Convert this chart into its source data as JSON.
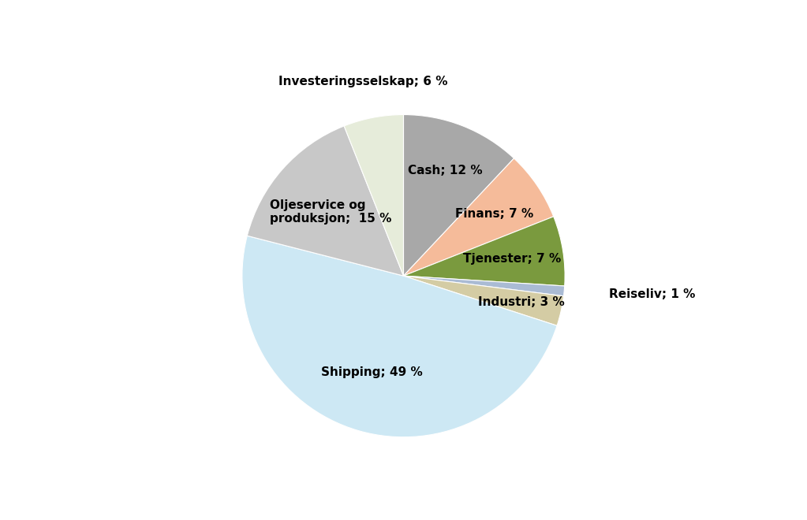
{
  "labels": [
    "Cash",
    "Finans",
    "Tjenester",
    "Reiseliv",
    "Industri",
    "Shipping",
    "Oljeservice og\nproduksjon",
    "Investeringsselskap"
  ],
  "label_display": [
    "Cash; 12 %",
    "Finans; 7 %",
    "Tjenester; 7 %",
    "Reiseliv; 1 %",
    "Industri; 3 %",
    "Shipping; 49 %",
    "Oljeservice og\nproduksjon;  15 %",
    "Investeringsselskap; 6 %"
  ],
  "pcts": [
    12,
    7,
    7,
    1,
    3,
    49,
    15,
    6
  ],
  "colors": [
    "#a8a8a8",
    "#f5bb9a",
    "#7a9a3e",
    "#aabbd4",
    "#d4cca4",
    "#cde8f4",
    "#c8c8c8",
    "#e6ecda"
  ],
  "startangle": 90,
  "bg": "#ffffff",
  "figsize": [
    10.23,
    6.6
  ],
  "dpi": 100,
  "label_positions": [
    {
      "r": 0.72,
      "ha": "center",
      "va": "center",
      "multiline": false
    },
    {
      "r": 0.72,
      "ha": "center",
      "va": "center",
      "multiline": false
    },
    {
      "r": 0.72,
      "ha": "center",
      "va": "center",
      "multiline": false
    },
    {
      "r": 1.18,
      "ha": "left",
      "va": "center",
      "multiline": false
    },
    {
      "r": 0.72,
      "ha": "center",
      "va": "center",
      "multiline": false
    },
    {
      "r": 0.55,
      "ha": "center",
      "va": "center",
      "multiline": false
    },
    {
      "r": 0.6,
      "ha": "center",
      "va": "center",
      "multiline": true
    },
    {
      "r": 1.15,
      "ha": "center",
      "va": "bottom",
      "multiline": false
    }
  ]
}
